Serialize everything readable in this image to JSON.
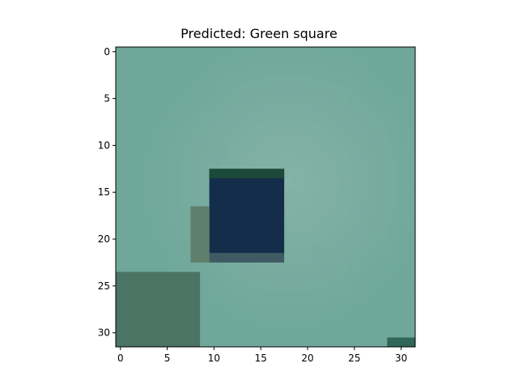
{
  "chart_data": {
    "type": "heatmap",
    "title": "Predicted: Green square",
    "xlabel": "",
    "ylabel": "",
    "xlim": [
      -0.5,
      31.5
    ],
    "ylim": [
      31.5,
      -0.5
    ],
    "xticks": [
      0,
      5,
      10,
      15,
      20,
      25,
      30
    ],
    "yticks": [
      0,
      5,
      10,
      15,
      20,
      25,
      30
    ],
    "grid": false,
    "image_size": [
      32,
      32
    ],
    "image_description_colors": {
      "background": "#6fa79b",
      "background_light": "#87b4a6",
      "square_fill": "#142d4a",
      "square_top_edge": "#1c4a3a",
      "shadow": "#4e7c6e",
      "lower_left_region": "#4a7464"
    },
    "regions": [
      {
        "name": "dark-square",
        "x": [
          10,
          17
        ],
        "y": [
          13,
          21
        ],
        "color": "#142d4a"
      },
      {
        "name": "square-top-edge",
        "x": [
          10,
          17
        ],
        "y": [
          13,
          13
        ],
        "color": "#1c4a3a"
      },
      {
        "name": "square-bottom-edge",
        "x": [
          10,
          17
        ],
        "y": [
          22,
          22
        ],
        "color": "#3f5a62"
      },
      {
        "name": "left-shadow",
        "x": [
          8,
          9
        ],
        "y": [
          17,
          22
        ],
        "color": "#5f7e6c"
      },
      {
        "name": "lower-left-block",
        "x": [
          0,
          8
        ],
        "y": [
          24,
          31
        ],
        "color": "#4a7464"
      },
      {
        "name": "bottom-right-dark",
        "x": [
          29,
          31
        ],
        "y": [
          31,
          31
        ],
        "color": "#2f6658"
      }
    ]
  }
}
